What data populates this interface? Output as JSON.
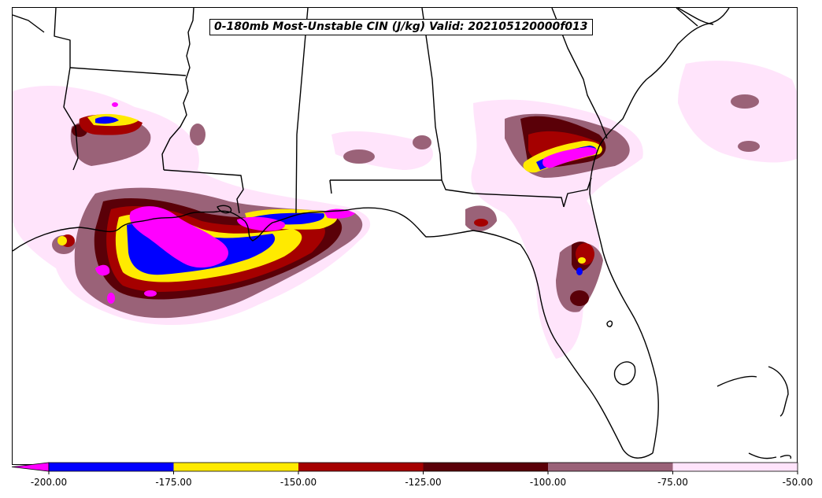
{
  "title": "0-180mb Most-Unstable CIN (J/kg) Valid: 202105120000f013",
  "colorbar": {
    "extend": "min",
    "extend_color": "#ff00ff",
    "bins": [
      {
        "from": -200,
        "to": -175,
        "color": "#0000ff"
      },
      {
        "from": -175,
        "to": -150,
        "color": "#ffea00"
      },
      {
        "from": -150,
        "to": -125,
        "color": "#a50000"
      },
      {
        "from": -125,
        "to": -100,
        "color": "#5a0008"
      },
      {
        "from": -100,
        "to": -75,
        "color": "#9a6278"
      },
      {
        "from": -75,
        "to": -50,
        "color": "#ffe4fb"
      }
    ],
    "tick_labels": [
      "-200.00",
      "-175.00",
      "-150.00",
      "-125.00",
      "-100.00",
      "-75.00",
      "-50.00"
    ]
  },
  "map": {
    "region": "Southeastern United States and Gulf of Mexico",
    "land_color": "#ffffff",
    "boundary_color": "#000000"
  }
}
